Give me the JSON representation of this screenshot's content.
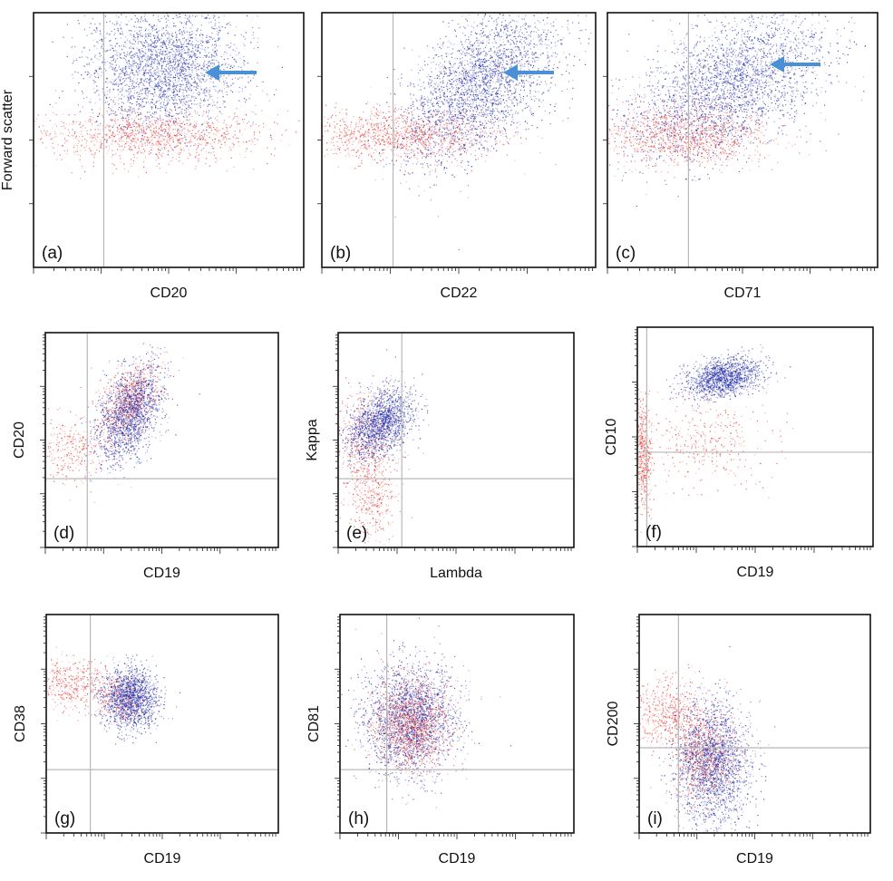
{
  "chart_data": [
    {
      "type": "scatter",
      "panel": "(a)",
      "xlabel": "CD20",
      "ylabel": "Forward scatter",
      "x_scale": "log",
      "arrow": true,
      "series": [
        {
          "color": "#1f2aa6",
          "clusters": [
            {
              "cx": 0.48,
              "cy": 0.78,
              "sx": 0.14,
              "sy": 0.12,
              "n": 2600
            }
          ]
        },
        {
          "color": "#e8332a",
          "clusters": [
            {
              "cx": 0.42,
              "cy": 0.52,
              "sx": 0.22,
              "sy": 0.05,
              "n": 1100
            }
          ]
        }
      ]
    },
    {
      "type": "scatter",
      "panel": "(b)",
      "xlabel": "CD22",
      "ylabel": "",
      "x_scale": "log",
      "arrow": true,
      "series": [
        {
          "color": "#1f2aa6",
          "clusters": [
            {
              "cx": 0.58,
              "cy": 0.72,
              "sx": 0.14,
              "sy": 0.15,
              "n": 2800,
              "rho": 0.55
            }
          ]
        },
        {
          "color": "#e8332a",
          "clusters": [
            {
              "cx": 0.28,
              "cy": 0.52,
              "sx": 0.18,
              "sy": 0.05,
              "n": 1100
            }
          ]
        }
      ]
    },
    {
      "type": "scatter",
      "panel": "(c)",
      "xlabel": "CD71",
      "ylabel": "",
      "x_scale": "log",
      "arrow": true,
      "series": [
        {
          "color": "#1f2aa6",
          "clusters": [
            {
              "cx": 0.45,
              "cy": 0.72,
              "sx": 0.18,
              "sy": 0.14,
              "n": 2800,
              "rho": 0.5
            }
          ]
        },
        {
          "color": "#e8332a",
          "clusters": [
            {
              "cx": 0.28,
              "cy": 0.52,
              "sx": 0.16,
              "sy": 0.06,
              "n": 1100
            }
          ]
        }
      ]
    },
    {
      "type": "scatter",
      "panel": "(d)",
      "xlabel": "CD19",
      "ylabel": "CD20",
      "x_scale": "log",
      "y_scale": "log",
      "series": [
        {
          "color": "#1f2aa6",
          "clusters": [
            {
              "cx": 0.36,
              "cy": 0.62,
              "sx": 0.07,
              "sy": 0.11,
              "n": 1600,
              "rho": 0.4
            }
          ]
        },
        {
          "color": "#e8332a",
          "clusters": [
            {
              "cx": 0.36,
              "cy": 0.68,
              "sx": 0.06,
              "sy": 0.09,
              "n": 700,
              "rho": 0.4
            },
            {
              "cx": 0.12,
              "cy": 0.46,
              "sx": 0.08,
              "sy": 0.08,
              "n": 300
            }
          ]
        }
      ]
    },
    {
      "type": "scatter",
      "panel": "(e)",
      "xlabel": "Lambda",
      "ylabel": "Kappa",
      "x_scale": "log",
      "y_scale": "log",
      "series": [
        {
          "color": "#1f2aa6",
          "clusters": [
            {
              "cx": 0.18,
              "cy": 0.58,
              "sx": 0.07,
              "sy": 0.08,
              "n": 1600,
              "rho": 0.4
            }
          ]
        },
        {
          "color": "#e8332a",
          "clusters": [
            {
              "cx": 0.12,
              "cy": 0.46,
              "sx": 0.06,
              "sy": 0.14,
              "n": 500
            },
            {
              "cx": 0.15,
              "cy": 0.22,
              "sx": 0.05,
              "sy": 0.09,
              "n": 250
            }
          ]
        }
      ]
    },
    {
      "type": "scatter",
      "panel": "(f)",
      "xlabel": "CD19",
      "ylabel": "CD10",
      "x_scale": "log",
      "y_scale": "log",
      "series": [
        {
          "color": "#1f2aa6",
          "clusters": [
            {
              "cx": 0.36,
              "cy": 0.77,
              "sx": 0.08,
              "sy": 0.045,
              "n": 1400,
              "rho": 0.3
            }
          ]
        },
        {
          "color": "#e8332a",
          "clusters": [
            {
              "cx": 0.02,
              "cy": 0.42,
              "sx": 0.02,
              "sy": 0.12,
              "n": 500
            },
            {
              "cx": 0.3,
              "cy": 0.48,
              "sx": 0.12,
              "sy": 0.1,
              "n": 350
            }
          ]
        }
      ]
    },
    {
      "type": "scatter",
      "panel": "(g)",
      "xlabel": "CD19",
      "ylabel": "CD38",
      "x_scale": "log",
      "y_scale": "log",
      "series": [
        {
          "color": "#1f2aa6",
          "clusters": [
            {
              "cx": 0.36,
              "cy": 0.62,
              "sx": 0.06,
              "sy": 0.07,
              "n": 1500
            }
          ]
        },
        {
          "color": "#e8332a",
          "clusters": [
            {
              "cx": 0.32,
              "cy": 0.62,
              "sx": 0.06,
              "sy": 0.06,
              "n": 300
            },
            {
              "cx": 0.1,
              "cy": 0.68,
              "sx": 0.08,
              "sy": 0.06,
              "n": 400
            }
          ]
        }
      ]
    },
    {
      "type": "scatter",
      "panel": "(h)",
      "xlabel": "CD19",
      "ylabel": "CD81",
      "x_scale": "log",
      "y_scale": "log",
      "series": [
        {
          "color": "#1f2aa6",
          "clusters": [
            {
              "cx": 0.3,
              "cy": 0.52,
              "sx": 0.1,
              "sy": 0.13,
              "n": 2000
            }
          ]
        },
        {
          "color": "#e8332a",
          "clusters": [
            {
              "cx": 0.3,
              "cy": 0.5,
              "sx": 0.08,
              "sy": 0.1,
              "n": 1400
            }
          ]
        }
      ]
    },
    {
      "type": "scatter",
      "panel": "(i)",
      "xlabel": "CD19",
      "ylabel": "CD200",
      "x_scale": "log",
      "y_scale": "log",
      "series": [
        {
          "color": "#1f2aa6",
          "clusters": [
            {
              "cx": 0.32,
              "cy": 0.32,
              "sx": 0.08,
              "sy": 0.14,
              "n": 2000
            }
          ]
        },
        {
          "color": "#e8332a",
          "clusters": [
            {
              "cx": 0.28,
              "cy": 0.36,
              "sx": 0.07,
              "sy": 0.1,
              "n": 800
            },
            {
              "cx": 0.12,
              "cy": 0.55,
              "sx": 0.08,
              "sy": 0.08,
              "n": 500
            }
          ]
        }
      ]
    }
  ]
}
